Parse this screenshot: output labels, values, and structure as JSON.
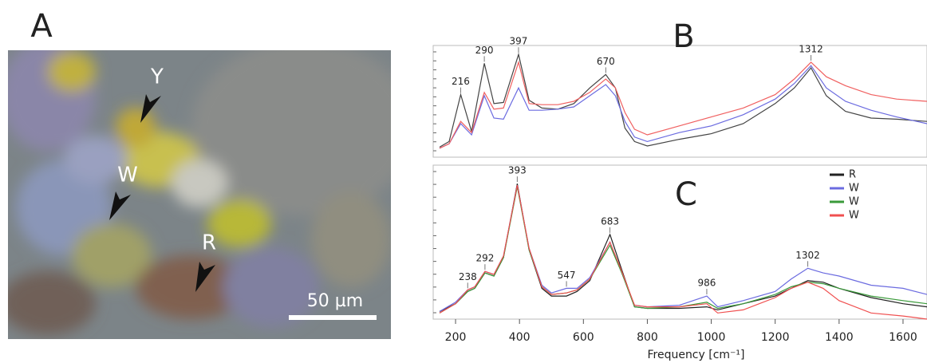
{
  "panel_a": {
    "panel_label": "A",
    "markers": [
      "Y",
      "W",
      "R"
    ],
    "scale_bar": "50 µm"
  },
  "chart_data": [
    {
      "type": "line",
      "panel_label": "B",
      "xlim": [
        130,
        1675
      ],
      "ylim": [
        0,
        100
      ],
      "x": [
        150,
        180,
        216,
        250,
        290,
        320,
        350,
        397,
        430,
        470,
        520,
        570,
        620,
        670,
        700,
        730,
        760,
        800,
        900,
        1000,
        1100,
        1200,
        1260,
        1312,
        1360,
        1420,
        1500,
        1580,
        1675
      ],
      "series": [
        {
          "color": "#444444",
          "values": [
            9,
            14,
            56,
            23,
            84,
            48,
            49,
            92,
            51,
            44,
            43,
            48,
            62,
            74,
            62,
            26,
            14,
            10,
            16,
            21,
            30,
            48,
            62,
            80,
            55,
            41,
            35,
            34,
            32
          ]
        },
        {
          "color": "#6b6be0",
          "values": [
            8,
            12,
            30,
            20,
            55,
            35,
            34,
            62,
            42,
            42,
            43,
            45,
            55,
            65,
            55,
            32,
            18,
            14,
            22,
            28,
            38,
            52,
            66,
            82,
            62,
            50,
            42,
            36,
            30
          ]
        },
        {
          "color": "#f06060",
          "values": [
            8,
            12,
            32,
            22,
            58,
            43,
            44,
            85,
            48,
            47,
            47,
            50,
            58,
            70,
            62,
            40,
            25,
            20,
            28,
            36,
            44,
            56,
            70,
            85,
            72,
            64,
            56,
            52,
            50
          ]
        }
      ],
      "peak_labels": [
        216,
        290,
        397,
        670,
        1312
      ]
    },
    {
      "type": "line",
      "panel_label": "C",
      "xlim": [
        130,
        1675
      ],
      "ylim": [
        0,
        100
      ],
      "xticks": [
        200,
        400,
        600,
        800,
        1000,
        1200,
        1400,
        1600
      ],
      "x_label": "Frequency [cm⁻¹]",
      "x": [
        150,
        200,
        238,
        260,
        292,
        320,
        350,
        393,
        430,
        470,
        500,
        547,
        580,
        620,
        683,
        720,
        760,
        800,
        900,
        986,
        1020,
        1100,
        1200,
        1250,
        1302,
        1350,
        1400,
        1500,
        1600,
        1675
      ],
      "series": [
        {
          "name": "R",
          "color": "#222222",
          "values": [
            5,
            10,
            18,
            20,
            30,
            28,
            40,
            88,
            45,
            20,
            15,
            15,
            18,
            25,
            55,
            32,
            8,
            7,
            7,
            8,
            6,
            10,
            15,
            20,
            25,
            24,
            20,
            14,
            10,
            8
          ]
        },
        {
          "name": "W",
          "color": "#6b6be0",
          "values": [
            5,
            11,
            19,
            21,
            31,
            29,
            41,
            87,
            46,
            22,
            17,
            20,
            20,
            27,
            50,
            30,
            9,
            8,
            9,
            15,
            8,
            12,
            18,
            26,
            33,
            30,
            28,
            22,
            20,
            16
          ]
        },
        {
          "name": "W",
          "color": "#3a9a3a",
          "values": [
            4,
            10,
            18,
            20,
            30,
            28,
            40,
            86,
            45,
            21,
            16,
            17,
            19,
            26,
            48,
            30,
            8,
            7,
            8,
            11,
            7,
            10,
            16,
            21,
            24,
            23,
            20,
            15,
            12,
            10
          ]
        },
        {
          "name": "W",
          "color": "#f05050",
          "values": [
            4,
            10,
            19,
            21,
            31,
            29,
            41,
            87,
            46,
            21,
            16,
            17,
            19,
            26,
            50,
            31,
            9,
            8,
            8,
            10,
            4,
            6,
            14,
            20,
            24,
            20,
            12,
            4,
            2,
            0
          ]
        }
      ],
      "peak_labels": [
        238,
        292,
        393,
        547,
        683,
        986,
        1302
      ]
    }
  ]
}
